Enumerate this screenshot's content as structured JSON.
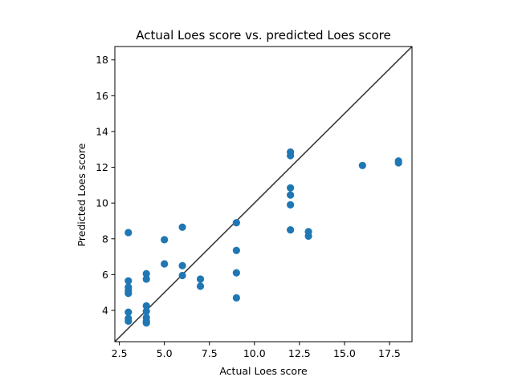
{
  "chart_data": {
    "type": "scatter",
    "title": "Actual Loes score vs. predicted Loes score",
    "xlabel": "Actual Loes score",
    "ylabel": "Predicted Loes score",
    "xlim": [
      2.25,
      18.75
    ],
    "ylim": [
      2.25,
      18.75
    ],
    "xticks": [
      2.5,
      5.0,
      7.5,
      10.0,
      12.5,
      15.0,
      17.5
    ],
    "xtick_labels": [
      "2.5",
      "5.0",
      "7.5",
      "10.0",
      "12.5",
      "15.0",
      "17.5"
    ],
    "yticks": [
      4,
      6,
      8,
      10,
      12,
      14,
      16,
      18
    ],
    "ytick_labels": [
      "4",
      "6",
      "8",
      "10",
      "12",
      "14",
      "16",
      "18"
    ],
    "grid": false,
    "reference_line": "y = x",
    "colors": {
      "points": "#1f77b4",
      "reference_line": "#3a3a3a"
    },
    "points": [
      {
        "x": 3,
        "y": 8.35
      },
      {
        "x": 3,
        "y": 5.65
      },
      {
        "x": 3,
        "y": 5.3
      },
      {
        "x": 3,
        "y": 5.1
      },
      {
        "x": 3,
        "y": 4.95
      },
      {
        "x": 3,
        "y": 3.9
      },
      {
        "x": 3,
        "y": 3.55
      },
      {
        "x": 3,
        "y": 3.4
      },
      {
        "x": 4,
        "y": 6.05
      },
      {
        "x": 4,
        "y": 5.75
      },
      {
        "x": 4,
        "y": 4.25
      },
      {
        "x": 4,
        "y": 3.95
      },
      {
        "x": 4,
        "y": 3.6
      },
      {
        "x": 4,
        "y": 3.4
      },
      {
        "x": 4,
        "y": 3.3
      },
      {
        "x": 5,
        "y": 7.95
      },
      {
        "x": 5,
        "y": 6.6
      },
      {
        "x": 6,
        "y": 8.65
      },
      {
        "x": 6,
        "y": 6.5
      },
      {
        "x": 6,
        "y": 5.95
      },
      {
        "x": 7,
        "y": 5.75
      },
      {
        "x": 7,
        "y": 5.35
      },
      {
        "x": 9,
        "y": 8.9
      },
      {
        "x": 9,
        "y": 7.35
      },
      {
        "x": 9,
        "y": 6.1
      },
      {
        "x": 9,
        "y": 4.7
      },
      {
        "x": 12,
        "y": 12.85
      },
      {
        "x": 12,
        "y": 12.65
      },
      {
        "x": 12,
        "y": 10.85
      },
      {
        "x": 12,
        "y": 10.45
      },
      {
        "x": 12,
        "y": 9.9
      },
      {
        "x": 12,
        "y": 8.5
      },
      {
        "x": 13,
        "y": 8.4
      },
      {
        "x": 13,
        "y": 8.15
      },
      {
        "x": 16,
        "y": 12.1
      },
      {
        "x": 18,
        "y": 12.35
      },
      {
        "x": 18,
        "y": 12.25
      }
    ]
  }
}
